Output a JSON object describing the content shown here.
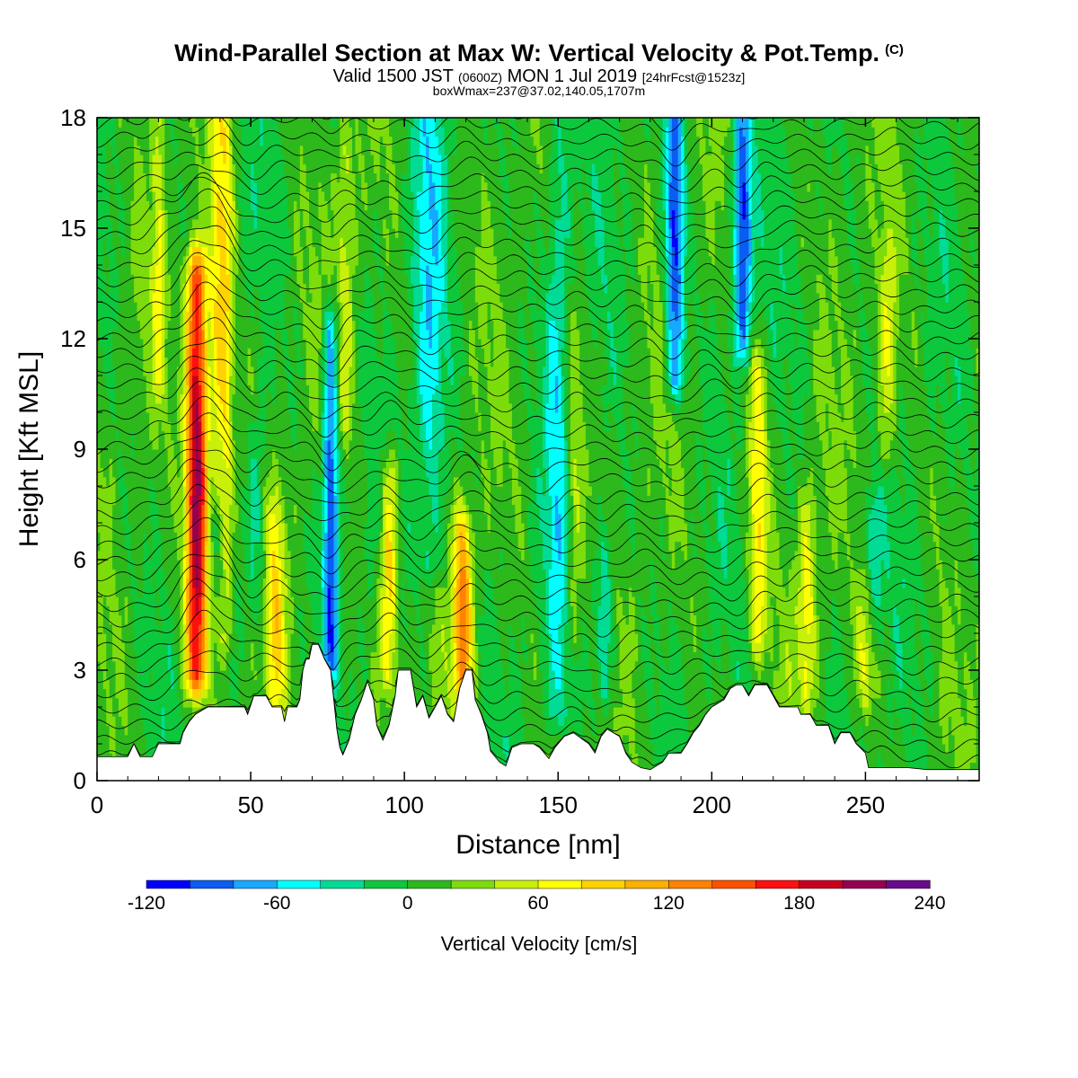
{
  "header": {
    "title": "Wind-Parallel Section at Max W: Vertical Velocity & Pot.Temp.",
    "copyright": "(C)",
    "valid_a": "Valid 1500 JST",
    "valid_b": "(0600Z)",
    "valid_c": "MON 1 Jul 2019",
    "valid_d": "[24hrFcst@1523z]",
    "boxinfo": "boxWmax=237@37.02,140.05,1707m"
  },
  "chart_data": {
    "type": "heatmap",
    "xlabel": "Distance [nm]",
    "ylabel": "Height [Kft MSL]",
    "xlim": [
      0,
      287
    ],
    "ylim": [
      0,
      18
    ],
    "x_ticks": [
      0,
      50,
      100,
      150,
      200,
      250
    ],
    "y_ticks": [
      0,
      3,
      6,
      9,
      12,
      15,
      18
    ],
    "colorbar": {
      "label": "Vertical Velocity [cm/s]",
      "levels": [
        -120,
        -100,
        -80,
        -60,
        -40,
        -20,
        0,
        20,
        40,
        60,
        80,
        100,
        120,
        140,
        160,
        180,
        200,
        220,
        240
      ],
      "tick_labels": [
        "-120",
        "-60",
        "0",
        "60",
        "120",
        "180",
        "240"
      ],
      "colors": [
        "#0000ff",
        "#0a5cf2",
        "#17a8ff",
        "#00ffff",
        "#00dc96",
        "#0dc83c",
        "#2db91c",
        "#7ddc0b",
        "#c8f00a",
        "#ffff00",
        "#ffd200",
        "#ffaf00",
        "#ff8200",
        "#ff5000",
        "#ff0f0f",
        "#c8001e",
        "#960050",
        "#6a0a8c"
      ]
    },
    "terrain_top_kft": [
      [
        0,
        0.65
      ],
      [
        10,
        0.65
      ],
      [
        12,
        1.0
      ],
      [
        14,
        0.65
      ],
      [
        18,
        0.65
      ],
      [
        20,
        1.0
      ],
      [
        27,
        1.0
      ],
      [
        28,
        1.3
      ],
      [
        30,
        1.6
      ],
      [
        32,
        1.8
      ],
      [
        36,
        2.0
      ],
      [
        48,
        2.0
      ],
      [
        49,
        1.8
      ],
      [
        51,
        2.3
      ],
      [
        55,
        2.3
      ],
      [
        57,
        2.0
      ],
      [
        60,
        2.0
      ],
      [
        61,
        1.6
      ],
      [
        62,
        2.0
      ],
      [
        65,
        2.0
      ],
      [
        66,
        2.2
      ],
      [
        67,
        3.0
      ],
      [
        68,
        3.3
      ],
      [
        69,
        3.3
      ],
      [
        70,
        3.7
      ],
      [
        72,
        3.7
      ],
      [
        74,
        3.3
      ],
      [
        76,
        3.0
      ],
      [
        77,
        2.2
      ],
      [
        78,
        1.4
      ],
      [
        79,
        0.9
      ],
      [
        80,
        0.7
      ],
      [
        82,
        1.1
      ],
      [
        84,
        1.8
      ],
      [
        86,
        2.2
      ],
      [
        88,
        2.7
      ],
      [
        90,
        2.2
      ],
      [
        91,
        1.5
      ],
      [
        93,
        1.1
      ],
      [
        95,
        1.5
      ],
      [
        97,
        2.3
      ],
      [
        98,
        3.0
      ],
      [
        102,
        3.0
      ],
      [
        103,
        2.5
      ],
      [
        104,
        2.0
      ],
      [
        106,
        2.3
      ],
      [
        108,
        1.7
      ],
      [
        110,
        2.0
      ],
      [
        112,
        2.3
      ],
      [
        114,
        1.8
      ],
      [
        116,
        1.6
      ],
      [
        118,
        2.5
      ],
      [
        120,
        3.0
      ],
      [
        122,
        3.0
      ],
      [
        123,
        2.2
      ],
      [
        125,
        1.8
      ],
      [
        127,
        1.3
      ],
      [
        128,
        0.8
      ],
      [
        131,
        0.5
      ],
      [
        133,
        0.4
      ],
      [
        135,
        0.9
      ],
      [
        138,
        1.0
      ],
      [
        142,
        1.0
      ],
      [
        144,
        0.9
      ],
      [
        147,
        0.6
      ],
      [
        149,
        0.9
      ],
      [
        152,
        1.2
      ],
      [
        155,
        1.3
      ],
      [
        160,
        1.0
      ],
      [
        162,
        0.75
      ],
      [
        164,
        1.2
      ],
      [
        166,
        1.4
      ],
      [
        170,
        1.2
      ],
      [
        172,
        0.75
      ],
      [
        174,
        0.5
      ],
      [
        177,
        0.35
      ],
      [
        180,
        0.3
      ],
      [
        184,
        0.5
      ],
      [
        186,
        0.75
      ],
      [
        190,
        0.75
      ],
      [
        192,
        1.0
      ],
      [
        194,
        1.3
      ],
      [
        196,
        1.5
      ],
      [
        198,
        1.8
      ],
      [
        200,
        2.0
      ],
      [
        204,
        2.2
      ],
      [
        206,
        2.5
      ],
      [
        208,
        2.6
      ],
      [
        210,
        2.6
      ],
      [
        212,
        2.3
      ],
      [
        214,
        2.6
      ],
      [
        218,
        2.6
      ],
      [
        220,
        2.3
      ],
      [
        222,
        2.0
      ],
      [
        228,
        2.0
      ],
      [
        229,
        1.8
      ],
      [
        232,
        1.8
      ],
      [
        234,
        1.5
      ],
      [
        238,
        1.5
      ],
      [
        240,
        1.0
      ],
      [
        242,
        1.3
      ],
      [
        245,
        1.3
      ],
      [
        247,
        1.0
      ],
      [
        250,
        0.75
      ],
      [
        251,
        0.35
      ],
      [
        256,
        0.35
      ],
      [
        260,
        0.35
      ],
      [
        264,
        0.35
      ],
      [
        270,
        0.3
      ],
      [
        276,
        0.3
      ],
      [
        280,
        0.3
      ],
      [
        287,
        0.3
      ]
    ],
    "updrafts": [
      {
        "x": 32.5,
        "w": 3.5,
        "bottom": 3.0,
        "top": 13.5,
        "peak": 220
      },
      {
        "x": 39,
        "w": 2.5,
        "bottom": 8,
        "top": 17.5,
        "peak": 60
      },
      {
        "x": 42,
        "w": 2.5,
        "bottom": 4,
        "top": 18,
        "peak": 65
      },
      {
        "x": 20,
        "w": 2,
        "bottom": 11,
        "top": 18,
        "peak": 50
      },
      {
        "x": 58,
        "w": 3,
        "bottom": 2.3,
        "top": 7,
        "peak": 70
      },
      {
        "x": 95,
        "w": 3,
        "bottom": 3,
        "top": 8,
        "peak": 95
      },
      {
        "x": 119,
        "w": 3,
        "bottom": 2.5,
        "top": 6.5,
        "peak": 130
      },
      {
        "x": 155,
        "w": 3,
        "bottom": 4,
        "top": 12,
        "peak": 45
      },
      {
        "x": 215,
        "w": 3,
        "bottom": 4,
        "top": 11,
        "peak": 75
      },
      {
        "x": 231,
        "w": 3,
        "bottom": 2.5,
        "top": 7,
        "peak": 65
      },
      {
        "x": 250,
        "w": 3,
        "bottom": 2.5,
        "top": 5,
        "peak": 70
      },
      {
        "x": 257,
        "w": 3,
        "bottom": 9,
        "top": 14,
        "peak": 55
      },
      {
        "x": 81,
        "w": 3,
        "bottom": 10,
        "top": 17,
        "peak": 45
      }
    ],
    "downdrafts": [
      {
        "x": 76,
        "w": 2.5,
        "bottom": 3.5,
        "top": 12,
        "peak": -115
      },
      {
        "x": 188,
        "w": 3,
        "bottom": 11,
        "top": 18,
        "peak": -115
      },
      {
        "x": 210,
        "w": 3,
        "bottom": 12,
        "top": 18,
        "peak": -115
      },
      {
        "x": 150,
        "w": 4,
        "bottom": 2,
        "top": 18,
        "peak": -50
      },
      {
        "x": 165,
        "w": 3,
        "bottom": 2.5,
        "top": 6,
        "peak": -60
      },
      {
        "x": 108,
        "w": 5,
        "bottom": 6,
        "top": 18,
        "peak": -55
      },
      {
        "x": 252,
        "w": 3,
        "bottom": 4,
        "top": 7,
        "peak": -50
      },
      {
        "x": 52,
        "w": 3,
        "bottom": 5,
        "top": 9,
        "peak": -45
      }
    ]
  }
}
